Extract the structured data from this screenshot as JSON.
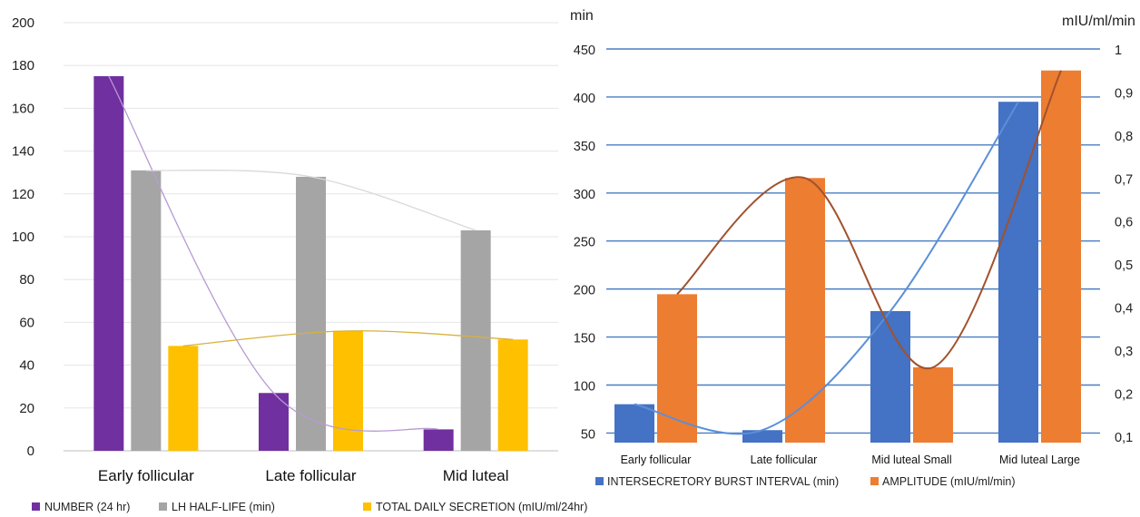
{
  "charts": [
    {
      "type": "bar",
      "categories": [
        "Early follicular",
        "Late follicular",
        "Mid luteal"
      ],
      "series": [
        {
          "name": "NUMBER (24 hr)",
          "color": "#7030A0",
          "values": [
            175,
            27,
            10
          ]
        },
        {
          "name": "LH HALF-LIFE (min)",
          "color": "#A5A5A5",
          "values": [
            131,
            128,
            103
          ]
        },
        {
          "name": "TOTAL DAILY SECRETION (mIU/ml/24hr)",
          "color": "#FFC000",
          "values": [
            49,
            56,
            52
          ]
        }
      ],
      "trendlines": true,
      "ylim": [
        0,
        200
      ],
      "yticks": [
        "0",
        "20",
        "40",
        "60",
        "80",
        "100",
        "120",
        "140",
        "160",
        "180",
        "200"
      ],
      "grid": true,
      "legend_position": "bottom"
    },
    {
      "type": "bar",
      "categories": [
        "Early follicular",
        "Late follicular",
        "Mid luteal Small",
        "Mid luteal Large"
      ],
      "series": [
        {
          "name": "INTERSECRETORY BURST INTERVAL (min)",
          "color": "#4472C4",
          "axis": "left",
          "values": [
            80,
            53,
            177,
            395
          ]
        },
        {
          "name": "AMPLITUDE (mIU/ml/min)",
          "color": "#ED7D31",
          "axis": "right",
          "values": [
            0.43,
            0.7,
            0.26,
            0.95
          ]
        }
      ],
      "trendlines": true,
      "ylabel": "min",
      "y2label": "mIU/ml/min",
      "ylim": [
        40,
        450
      ],
      "y2lim": [
        0.085,
        1.0
      ],
      "yticks": [
        "50",
        "100",
        "150",
        "200",
        "250",
        "300",
        "350",
        "400",
        "450"
      ],
      "y2ticks": [
        "0,1",
        "0,2",
        "0,3",
        "0,4",
        "0,5",
        "0,6",
        "0,7",
        "0,8",
        "0,9",
        "1"
      ],
      "grid": true,
      "legend_position": "bottom"
    }
  ]
}
